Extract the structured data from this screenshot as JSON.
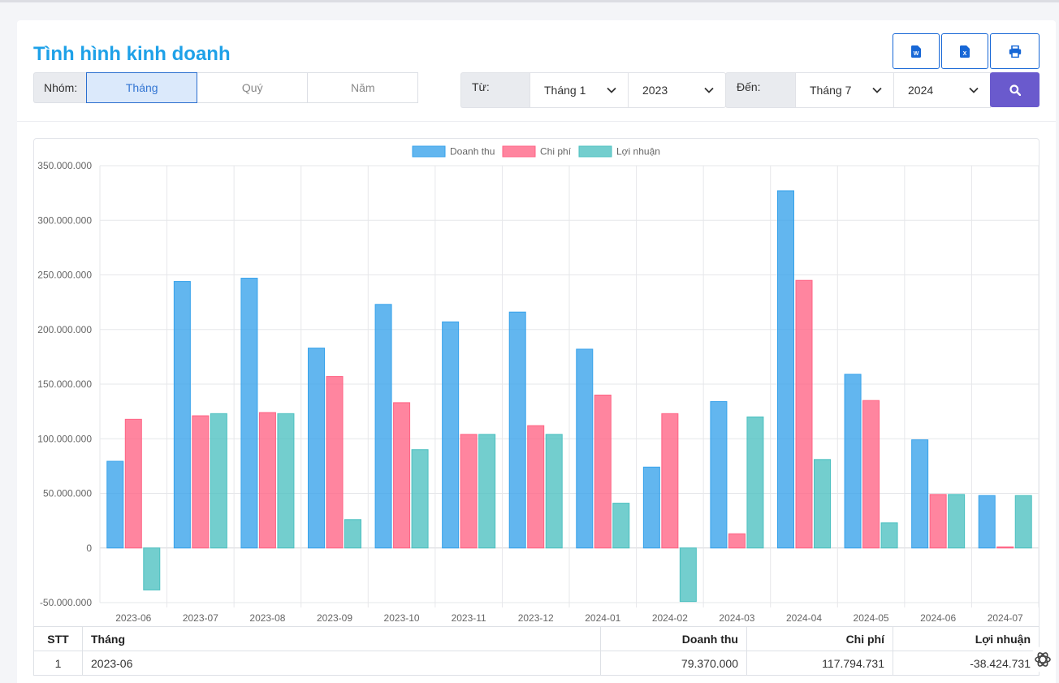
{
  "page": {
    "title": "Tình hình kinh doanh"
  },
  "toolbar": {
    "export_word_icon": "word-file-icon",
    "export_excel_icon": "excel-file-icon",
    "print_icon": "printer-icon",
    "word_letter": "W",
    "excel_letter": "X"
  },
  "filters": {
    "group_label": "Nhóm:",
    "group_options": [
      "Tháng",
      "Quý",
      "Năm"
    ],
    "group_selected": "Tháng",
    "from_label": "Từ:",
    "from_month": "Tháng 1",
    "from_year": "2023",
    "to_label": "Đến:",
    "to_month": "Tháng 7",
    "to_year": "2024",
    "search_icon": "search-icon"
  },
  "colors": {
    "title": "#1ea1e8",
    "doanh_thu": "#36a2eb",
    "chi_phi": "#ff6384",
    "loi_nhuan": "#4bc0c0",
    "search_button": "#6a5acd"
  },
  "chart_data": {
    "type": "bar",
    "legend_position": "top",
    "grid": true,
    "ylim": [
      -50000000,
      350000000
    ],
    "y_ticks": [
      "350.000.000",
      "300.000.000",
      "250.000.000",
      "200.000.000",
      "150.000.000",
      "100.000.000",
      "50.000.000",
      "0",
      "-50.000.000"
    ],
    "categories": [
      "2023-06",
      "2023-07",
      "2023-08",
      "2023-09",
      "2023-10",
      "2023-11",
      "2023-12",
      "2024-01",
      "2024-02",
      "2024-03",
      "2024-04",
      "2024-05",
      "2024-06",
      "2024-07"
    ],
    "series": [
      {
        "name": "Doanh thu",
        "color": "#36a2eb",
        "values": [
          79370000,
          244000000,
          247000000,
          183000000,
          223000000,
          207000000,
          216000000,
          182000000,
          74000000,
          134000000,
          327000000,
          159000000,
          99000000,
          48000000
        ]
      },
      {
        "name": "Chi phí",
        "color": "#ff6384",
        "values": [
          117794731,
          121000000,
          124000000,
          157000000,
          133000000,
          104000000,
          112000000,
          140000000,
          123000000,
          13000000,
          245000000,
          135000000,
          49000000,
          1000000
        ]
      },
      {
        "name": "Lợi nhuận",
        "color": "#4bc0c0",
        "values": [
          -38424731,
          123000000,
          123000000,
          26000000,
          90000000,
          104000000,
          104000000,
          41000000,
          -49000000,
          120000000,
          81000000,
          23000000,
          49000000,
          48000000
        ]
      }
    ]
  },
  "table": {
    "headers": [
      "STT",
      "Tháng",
      "Doanh thu",
      "Chi phí",
      "Lợi nhuận"
    ],
    "rows": [
      [
        "1",
        "2023-06",
        "79.370.000",
        "117.794.731",
        "-38.424.731"
      ]
    ]
  },
  "assistant_icon": "openai-logo-icon"
}
